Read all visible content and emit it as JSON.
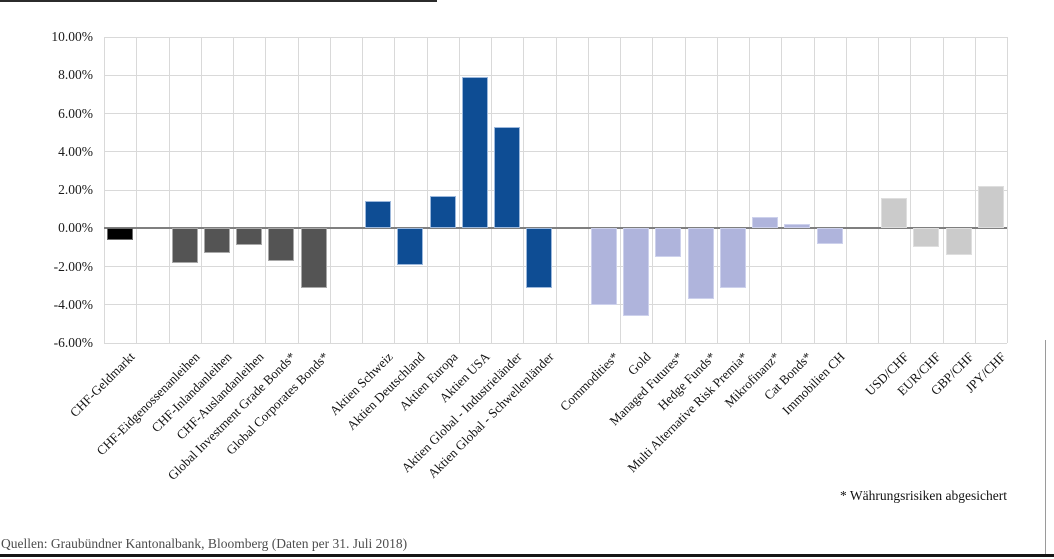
{
  "chart_data": {
    "type": "bar",
    "title": "",
    "value_unit": "percent",
    "grid": true,
    "legend_position": "none",
    "y_axis": {
      "min": -6,
      "max": 10,
      "step": 2,
      "tick_labels": [
        "10.00%",
        "8.00%",
        "6.00%",
        "4.00%",
        "2.00%",
        "0.00%",
        "-2.00%",
        "-4.00%",
        "-6.00%"
      ]
    },
    "groups": [
      {
        "color": "#000000",
        "border_color": "#6b6b6b",
        "bars": [
          {
            "label": "CHF-Geldmarkt",
            "value": -0.6
          }
        ]
      },
      {
        "color": "#545454",
        "border_color": "#a8a8a8",
        "bars": [
          {
            "label": "CHF-Eidgenossenanleihen",
            "value": -1.8
          },
          {
            "label": "CHF-Inlandanleihen",
            "value": -1.3
          },
          {
            "label": "CHF-Auslandanleihen",
            "value": -0.9
          },
          {
            "label": "Global Investment Grade Bonds*",
            "value": -1.7
          },
          {
            "label": "Global Corporates Bonds*",
            "value": -3.1
          }
        ]
      },
      {
        "color": "#0e4d94",
        "border_color": "#9cb8dc",
        "bars": [
          {
            "label": "Aktien Schweiz",
            "value": 1.4
          },
          {
            "label": "Aktien Deutschland",
            "value": -1.9
          },
          {
            "label": "Aktien Europa",
            "value": 1.7
          },
          {
            "label": "Aktien USA",
            "value": 7.9
          },
          {
            "label": "Aktien Global - Industrieländer",
            "value": 5.3
          },
          {
            "label": "Aktien Global - Schwellenländer",
            "value": -3.1
          }
        ]
      },
      {
        "color": "#afb4dc",
        "border_color": "#cdd1ec",
        "bars": [
          {
            "label": "Commodities*",
            "value": -4.0
          },
          {
            "label": "Gold",
            "value": -4.6
          },
          {
            "label": "Managed Futures*",
            "value": -1.5
          },
          {
            "label": "Hedge Funds*",
            "value": -3.7
          },
          {
            "label": "Multi Alternative Risk Premia*",
            "value": -3.1
          },
          {
            "label": "Mikrofinanz*",
            "value": 0.6
          },
          {
            "label": "Cat Bonds*",
            "value": 0.2
          },
          {
            "label": "Immobilien CH",
            "value": -0.8
          }
        ]
      },
      {
        "color": "#cbcbcb",
        "border_color": "#dedede",
        "bars": [
          {
            "label": "USD/CHF",
            "value": 1.6
          },
          {
            "label": "EUR/CHF",
            "value": -1.0
          },
          {
            "label": "GBP/CHF",
            "value": -1.4
          },
          {
            "label": "JPY/CHF",
            "value": 2.2
          }
        ]
      }
    ],
    "footnote": "* Währungsrisiken abgesichert",
    "source": "Quellen: Graubündner Kantonalbank, Bloomberg (Daten per 31. Juli 2018)"
  },
  "colors": {
    "gridline": "#d9d9d9",
    "zero_line": "#7f7f7f",
    "tick_text": "#1a1a1a",
    "source_text": "#4d4d4d"
  }
}
